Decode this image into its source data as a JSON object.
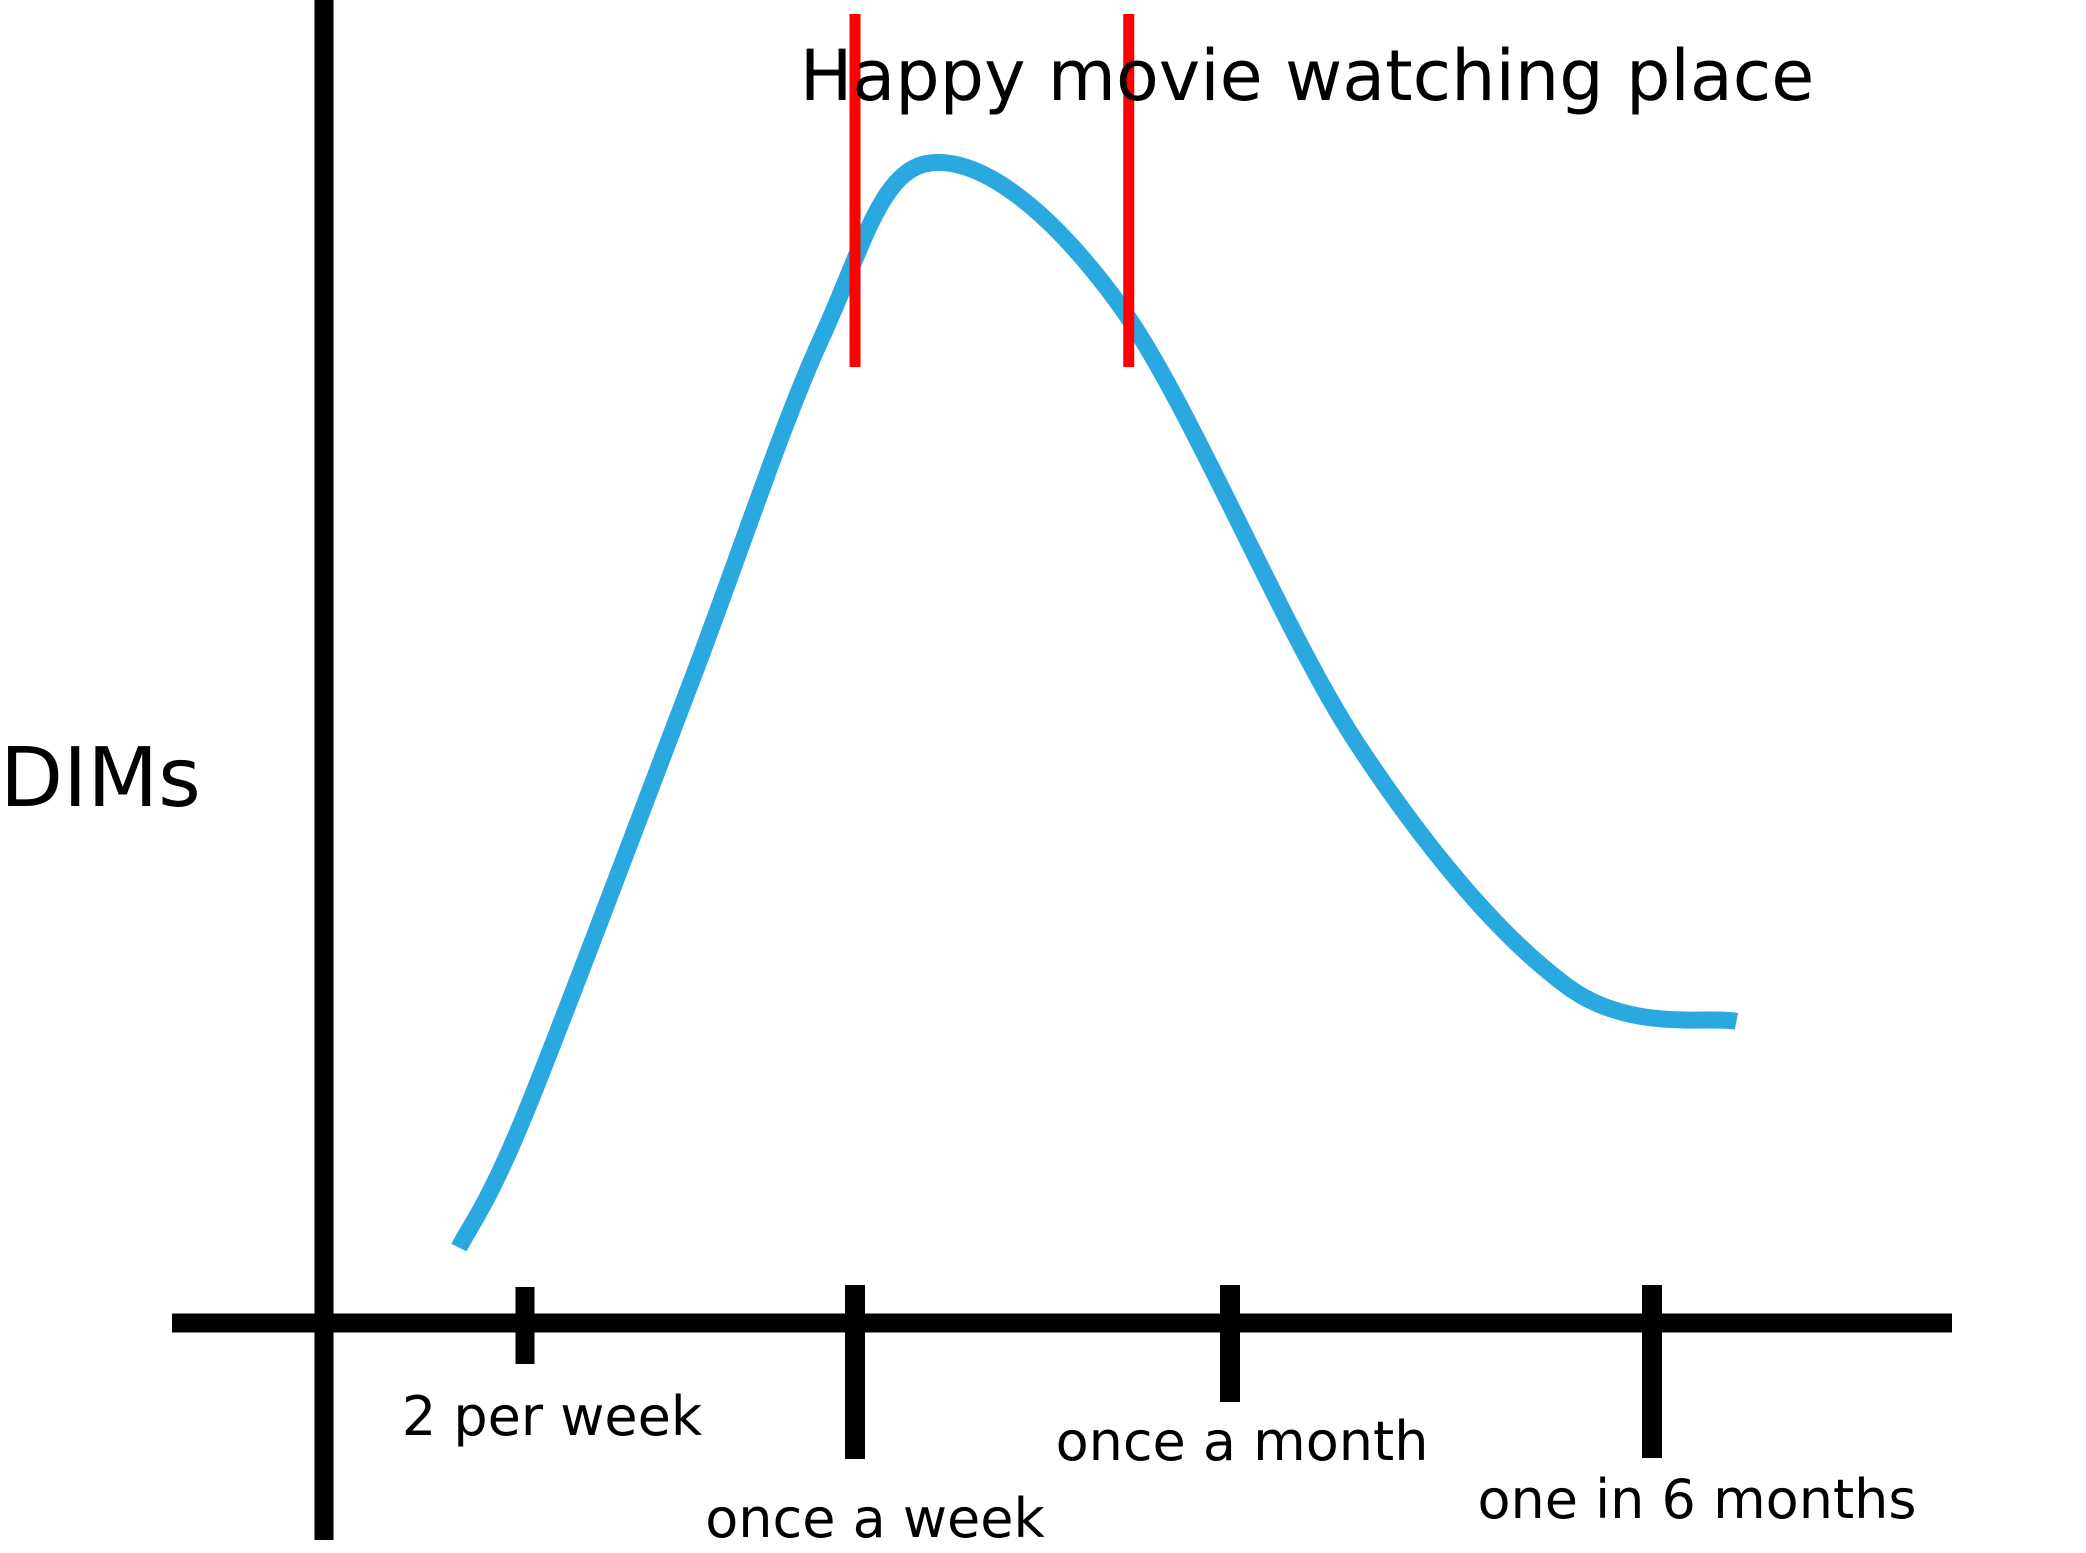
{
  "chart_data": {
    "type": "line",
    "title": "",
    "xlabel": "",
    "ylabel": "DIMs",
    "grid": false,
    "legend": "none",
    "x_ticks": [
      {
        "label": "2 per week"
      },
      {
        "label": "once a week"
      },
      {
        "label": "once a month"
      },
      {
        "label": "one in 6 months"
      }
    ],
    "annotation": {
      "label": "Happy movie watching place",
      "start_tick": 2,
      "end_tick": 2.73
    },
    "series": [
      {
        "name": "",
        "color": "#2aa8e0",
        "points": [
          [
            0.8,
            0.065
          ],
          [
            1.0,
            0.18
          ],
          [
            1.5,
            0.55
          ],
          [
            1.9,
            0.85
          ],
          [
            2.2,
            1.0
          ],
          [
            2.7,
            0.88
          ],
          [
            3.3,
            0.5
          ],
          [
            3.8,
            0.29
          ],
          [
            4.2,
            0.26
          ]
        ]
      }
    ],
    "colors": {
      "axis": "#000000",
      "annotation_markers": "#ff0000"
    }
  }
}
